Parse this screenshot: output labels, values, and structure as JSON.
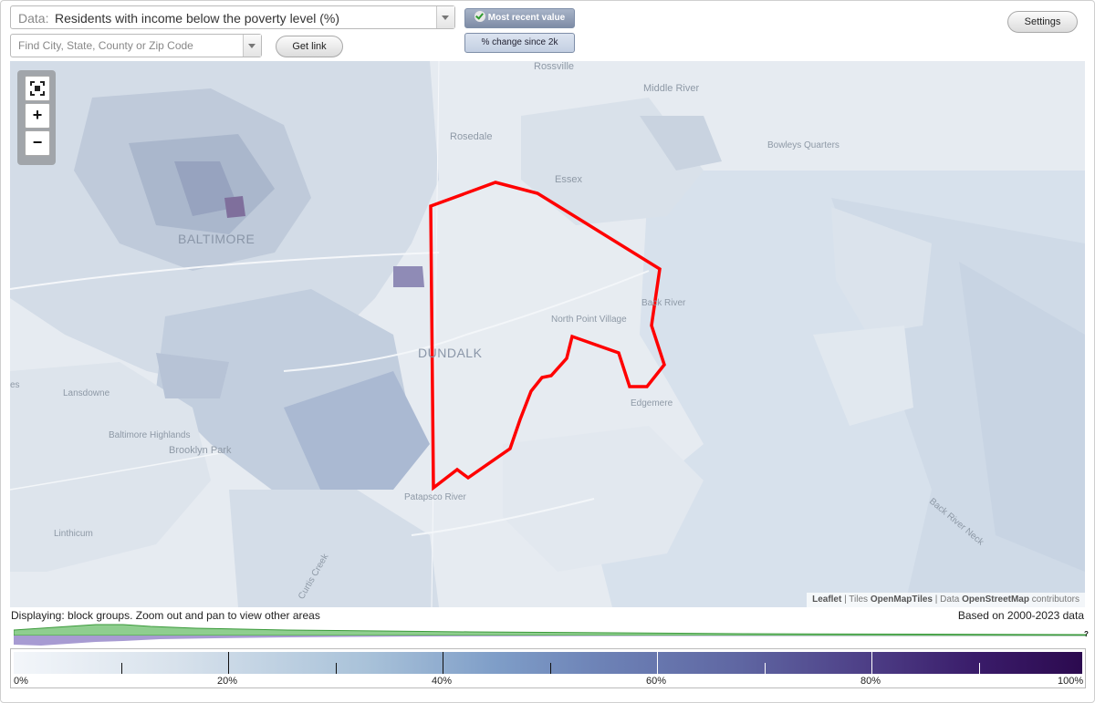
{
  "data_selector": {
    "label": "Data:",
    "value": "Residents with income below the poverty level (%)"
  },
  "search": {
    "placeholder": "Find City, State, County or Zip Code"
  },
  "buttons": {
    "get_link": "Get link",
    "settings": "Settings"
  },
  "view_toggle": {
    "most_recent": "Most recent value",
    "change_since": "% change since 2k"
  },
  "map": {
    "place_labels": [
      "Rossville",
      "Middle River",
      "Rosedale",
      "Bowleys Quarters",
      "Essex",
      "BALTIMORE",
      "Back River",
      "North Point Village",
      "DUNDALK",
      "Lansdowne",
      "Edgemere",
      "Baltimore Highlands",
      "Brooklyn Park",
      "Patapsco River",
      "Linthicum",
      "Curtis Creek",
      "Back River Neck",
      "es"
    ],
    "zoom_controls": {
      "fullscreen_icon": "fullscreen-icon",
      "zoom_in": "+",
      "zoom_out": "−"
    },
    "attribution": {
      "leaflet": "Leaflet",
      "sep1": " | Tiles ",
      "tiles": "OpenMapTiles",
      "sep2": " | Data ",
      "data": "OpenStreetMap",
      "suffix": " contributors"
    },
    "highlight_color": "#ff0000"
  },
  "status": {
    "display_note": "Displaying: block groups. Zoom out and pan to view other areas",
    "based_on": "Based on 2000-2023 data"
  },
  "legend": {
    "labels": [
      "0%",
      "20%",
      "40%",
      "60%",
      "80%",
      "100%"
    ],
    "unknown_mark": "?",
    "color_low": "#f3f6fa",
    "color_high": "#2c0a4f"
  }
}
